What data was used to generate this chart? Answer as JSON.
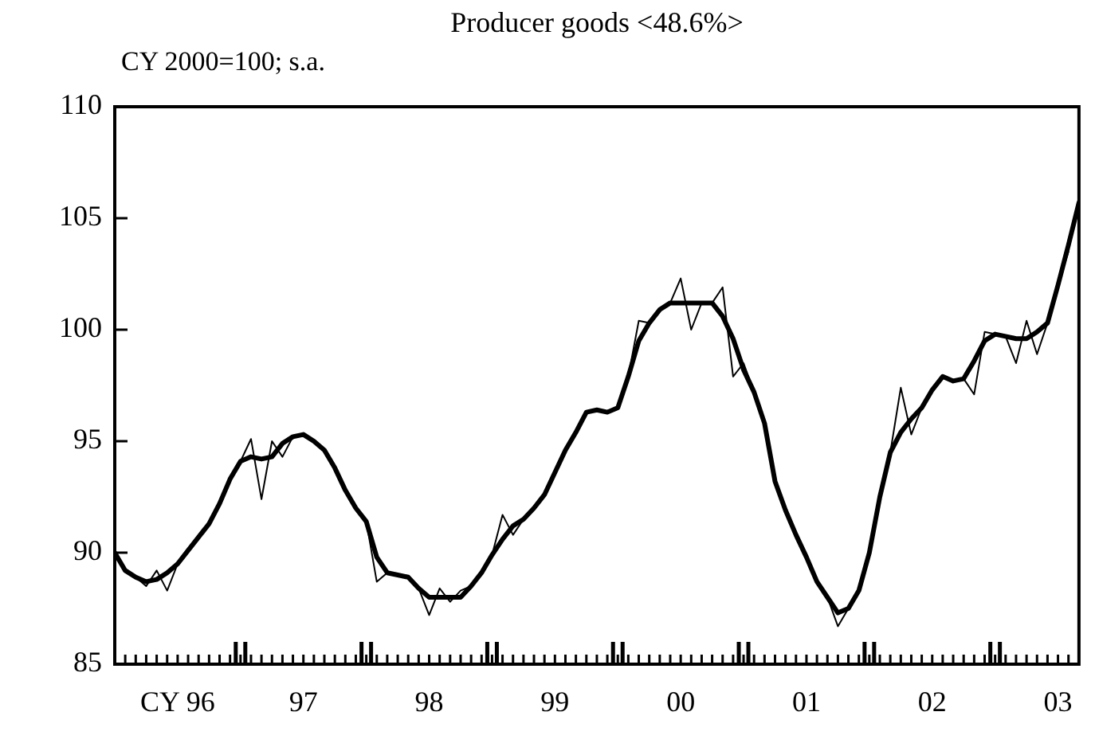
{
  "chart_data": {
    "type": "line",
    "title": "Producer goods <48.6%>",
    "annotations": [
      "CY 2000=100; s.a."
    ],
    "x": [
      "1996-01",
      "1996-02",
      "1996-03",
      "1996-04",
      "1996-05",
      "1996-06",
      "1996-07",
      "1996-08",
      "1996-09",
      "1996-10",
      "1996-11",
      "1996-12",
      "1997-01",
      "1997-02",
      "1997-03",
      "1997-04",
      "1997-05",
      "1997-06",
      "1997-07",
      "1997-08",
      "1997-09",
      "1997-10",
      "1997-11",
      "1997-12",
      "1998-01",
      "1998-02",
      "1998-03",
      "1998-04",
      "1998-05",
      "1998-06",
      "1998-07",
      "1998-08",
      "1998-09",
      "1998-10",
      "1998-11",
      "1998-12",
      "1999-01",
      "1999-02",
      "1999-03",
      "1999-04",
      "1999-05",
      "1999-06",
      "1999-07",
      "1999-08",
      "1999-09",
      "1999-10",
      "1999-11",
      "1999-12",
      "2000-01",
      "2000-02",
      "2000-03",
      "2000-04",
      "2000-05",
      "2000-06",
      "2000-07",
      "2000-08",
      "2000-09",
      "2000-10",
      "2000-11",
      "2000-12",
      "2001-01",
      "2001-02",
      "2001-03",
      "2001-04",
      "2001-05",
      "2001-06",
      "2001-07",
      "2001-08",
      "2001-09",
      "2001-10",
      "2001-11",
      "2001-12",
      "2002-01",
      "2002-02",
      "2002-03",
      "2002-04",
      "2002-05",
      "2002-06",
      "2002-07",
      "2002-08",
      "2002-09",
      "2002-10",
      "2002-11",
      "2002-12",
      "2003-01",
      "2003-02",
      "2003-03",
      "2003-04",
      "2003-05",
      "2003-06",
      "2003-07",
      "2003-08",
      "2003-09"
    ],
    "series": [
      {
        "color": "#000000",
        "values": [
          90.0,
          89.2,
          88.9,
          88.5,
          89.2,
          88.3,
          89.5,
          90.1,
          90.7,
          91.3,
          92.2,
          93.3,
          94.1,
          95.1,
          92.4,
          95.0,
          94.3,
          95.2,
          95.3,
          95.0,
          94.6,
          93.8,
          92.8,
          92.0,
          91.4,
          88.7,
          89.1,
          89.0,
          88.9,
          88.4,
          87.2,
          88.4,
          87.8,
          88.3,
          88.5,
          89.1,
          89.9,
          91.7,
          90.8,
          91.5,
          92.0,
          92.6,
          93.6,
          94.6,
          95.4,
          96.3,
          96.4,
          96.3,
          96.5,
          97.9,
          100.4,
          100.3,
          100.9,
          101.2,
          102.3,
          100.0,
          101.2,
          101.2,
          101.9,
          97.9,
          98.5,
          97.2,
          95.8,
          93.2,
          91.9,
          90.8,
          89.8,
          88.7,
          88.0,
          86.7,
          87.5,
          88.3,
          90.0,
          92.5,
          94.5,
          97.4,
          95.3,
          96.5,
          97.3,
          97.9,
          97.7,
          97.8,
          97.1,
          99.9,
          99.8,
          99.7,
          98.5,
          100.4,
          98.9,
          100.3,
          102.0,
          103.5,
          null
        ]
      },
      {
        "color": "#000000",
        "values": [
          90.0,
          89.2,
          88.9,
          88.7,
          88.8,
          89.1,
          89.5,
          90.1,
          90.7,
          91.3,
          92.2,
          93.3,
          94.1,
          94.3,
          94.2,
          94.3,
          94.9,
          95.2,
          95.3,
          95.0,
          94.6,
          93.8,
          92.8,
          92.0,
          91.4,
          89.8,
          89.1,
          89.0,
          88.9,
          88.4,
          88.0,
          88.0,
          88.0,
          88.0,
          88.5,
          89.1,
          89.9,
          90.6,
          91.2,
          91.5,
          92.0,
          92.6,
          93.6,
          94.6,
          95.4,
          96.3,
          96.4,
          96.3,
          96.5,
          97.9,
          99.5,
          100.3,
          100.9,
          101.2,
          101.2,
          101.2,
          101.2,
          101.2,
          100.6,
          99.6,
          98.2,
          97.2,
          95.8,
          93.2,
          91.9,
          90.8,
          89.8,
          88.7,
          88.0,
          87.3,
          87.5,
          88.3,
          90.0,
          92.5,
          94.5,
          95.4,
          96.0,
          96.5,
          97.3,
          97.9,
          97.7,
          97.8,
          98.6,
          99.5,
          99.8,
          99.7,
          99.6,
          99.6,
          99.9,
          100.3,
          102.0,
          103.8,
          105.7
        ]
      }
    ],
    "xlim": [
      "1996-01",
      "2003-09"
    ],
    "xticks": [
      {
        "value": "1996-07",
        "label": "CY 96"
      },
      {
        "value": "1997-01",
        "label": null
      },
      {
        "value": "1997-07",
        "label": "97"
      },
      {
        "value": "1998-01",
        "label": null
      },
      {
        "value": "1998-07",
        "label": "98"
      },
      {
        "value": "1999-01",
        "label": null
      },
      {
        "value": "1999-07",
        "label": "99"
      },
      {
        "value": "2000-01",
        "label": null
      },
      {
        "value": "2000-07",
        "label": "00"
      },
      {
        "value": "2001-01",
        "label": null
      },
      {
        "value": "2001-07",
        "label": "01"
      },
      {
        "value": "2002-01",
        "label": null
      },
      {
        "value": "2002-07",
        "label": "02"
      },
      {
        "value": "2003-01",
        "label": null
      },
      {
        "value": "2003-07",
        "label": "03"
      }
    ],
    "ylim": [
      85,
      110
    ],
    "yticks": [
      85,
      90,
      95,
      100,
      105,
      110
    ],
    "grid": false,
    "legend": false,
    "marker": "none",
    "line_style": "solid"
  }
}
